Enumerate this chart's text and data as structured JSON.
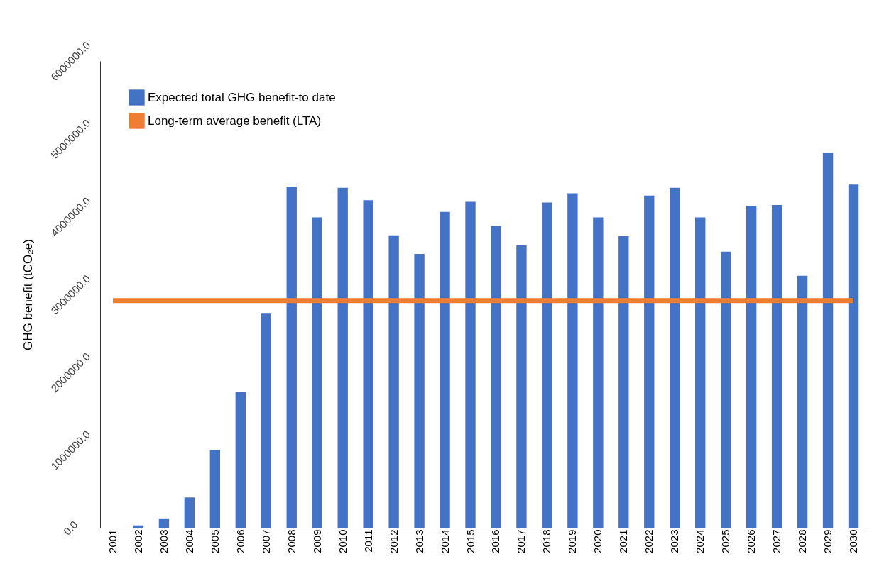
{
  "chart_data": {
    "type": "bar",
    "ylabel": "GHG benefit (tCO₂e)",
    "categories": [
      "2001",
      "2002",
      "2003",
      "2004",
      "2005",
      "2006",
      "2007",
      "2008",
      "2009",
      "2010",
      "2011",
      "2012",
      "2013",
      "2014",
      "2015",
      "2016",
      "2017",
      "2018",
      "2019",
      "2020",
      "2021",
      "2022",
      "2023",
      "2024",
      "2025",
      "2026",
      "2027",
      "2028",
      "2029",
      "2030"
    ],
    "series": [
      {
        "name": "Expected total GHG benefit-to date",
        "color": "#4472c4",
        "values": [
          0,
          30000,
          120000,
          390000,
          1000000,
          1745000,
          2760000,
          4385000,
          3990000,
          4370000,
          4210000,
          3760000,
          3520000,
          4060000,
          4190000,
          3880000,
          3630000,
          4180000,
          4300000,
          3990000,
          3750000,
          4270000,
          4370000,
          3990000,
          3550000,
          4140000,
          4150000,
          3240000,
          4820000,
          4410000
        ]
      },
      {
        "name": "Long-term average benefit (LTA)",
        "type": "line",
        "color": "#ed7d31",
        "values": [
          2920000,
          2920000,
          2920000,
          2920000,
          2920000,
          2920000,
          2920000,
          2920000,
          2920000,
          2920000,
          2920000,
          2920000,
          2920000,
          2920000,
          2920000,
          2920000,
          2920000,
          2920000,
          2920000,
          2920000,
          2920000,
          2920000,
          2920000,
          2920000,
          2920000,
          2920000,
          2920000,
          2920000,
          2920000,
          2920000
        ]
      }
    ],
    "ylim": [
      0,
      6000000
    ],
    "yticks": [
      {
        "value": 0,
        "label": "0.0"
      },
      {
        "value": 1000000,
        "label": "1000000.0"
      },
      {
        "value": 2000000,
        "label": "2000000.0"
      },
      {
        "value": 3000000,
        "label": "3000000.0"
      },
      {
        "value": 4000000,
        "label": "4000000.0"
      },
      {
        "value": 5000000,
        "label": "5000000.0"
      },
      {
        "value": 6000000,
        "label": "6000000.0"
      }
    ],
    "grid": false,
    "legend": "top left"
  }
}
